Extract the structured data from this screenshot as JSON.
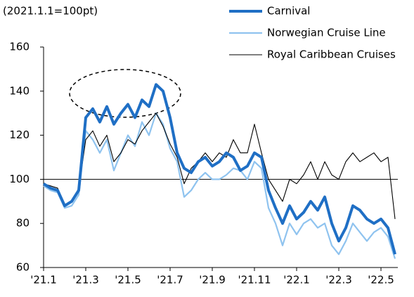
{
  "chart_data": {
    "type": "line",
    "annotation": "(2021.1.1=100pt)",
    "categories": [
      "'21.1",
      null,
      null,
      null,
      null,
      null,
      "'21.3",
      null,
      null,
      null,
      null,
      null,
      "'21.5",
      null,
      null,
      null,
      null,
      null,
      "'21.7",
      null,
      null,
      null,
      null,
      null,
      "'21.9",
      null,
      null,
      null,
      null,
      null,
      "'21.11",
      null,
      null,
      null,
      null,
      null,
      "'22.1",
      null,
      null,
      null,
      null,
      null,
      "'22.3",
      null,
      null,
      null,
      null,
      null,
      "'22.5",
      null,
      null
    ],
    "series": [
      {
        "name": "Carnival",
        "color": "#1f6fc5",
        "values": [
          98,
          96,
          95,
          88,
          90,
          95,
          128,
          132,
          126,
          133,
          125,
          130,
          134,
          128,
          136,
          133,
          143,
          140,
          128,
          112,
          105,
          103,
          108,
          110,
          106,
          108,
          112,
          110,
          104,
          106,
          112,
          110,
          95,
          87,
          80,
          88,
          82,
          85,
          90,
          86,
          92,
          80,
          72,
          78,
          88,
          86,
          82,
          80,
          82,
          78,
          66
        ]
      },
      {
        "name": "Norwegian Cruise Line",
        "color": "#8fc3ef",
        "values": [
          97,
          95,
          94,
          87,
          88,
          93,
          122,
          118,
          112,
          118,
          104,
          112,
          120,
          115,
          126,
          120,
          130,
          125,
          114,
          108,
          92,
          95,
          100,
          103,
          100,
          100,
          102,
          105,
          104,
          100,
          108,
          105,
          87,
          80,
          70,
          80,
          75,
          80,
          82,
          78,
          80,
          70,
          66,
          72,
          80,
          76,
          72,
          76,
          78,
          74,
          64
        ]
      },
      {
        "name": "Royal Caribbean Cruises",
        "color": "#000000",
        "values": [
          98,
          97,
          96,
          88,
          90,
          96,
          118,
          122,
          115,
          120,
          108,
          112,
          118,
          116,
          122,
          126,
          130,
          124,
          116,
          110,
          98,
          105,
          108,
          112,
          108,
          112,
          110,
          118,
          112,
          112,
          125,
          112,
          100,
          95,
          90,
          100,
          98,
          102,
          108,
          100,
          108,
          102,
          100,
          108,
          112,
          108,
          110,
          112,
          108,
          110,
          82
        ]
      }
    ],
    "ylim": [
      60,
      160
    ],
    "yticks": [
      60,
      80,
      100,
      120,
      140,
      160
    ],
    "reference_line": 100
  }
}
